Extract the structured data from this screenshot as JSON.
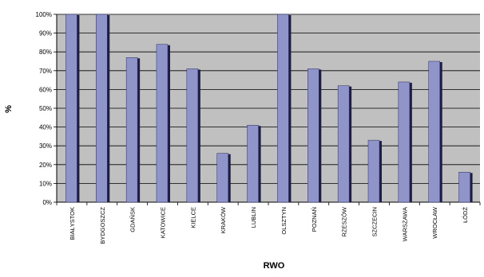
{
  "chart_data": {
    "type": "bar",
    "title": "",
    "xlabel": "RWO",
    "ylabel": "%",
    "categories": [
      "BIAŁYSTOK",
      "BYDGOSZCZ",
      "GDAŃSK",
      "KATOWICE",
      "KIELCE",
      "KRAKÓW",
      "LUBLIN",
      "OLSZTYN",
      "POZNAŃ",
      "RZESZÓW",
      "SZCZECIN",
      "WARSZAWA",
      "WROCŁAW",
      "ŁÓDŹ"
    ],
    "series": [
      {
        "values": [
          100,
          100,
          77,
          84,
          71,
          26,
          41,
          100,
          71,
          62,
          33,
          64,
          75,
          16
        ]
      }
    ],
    "ylim": [
      0,
      100
    ],
    "yticks": [
      "0%",
      "10%",
      "20%",
      "30%",
      "40%",
      "50%",
      "60%",
      "70%",
      "80%",
      "90%",
      "100%"
    ],
    "grid": true,
    "legend": "none",
    "colors": {
      "plot_background": "#c0c0c0",
      "bar_fill": "#8f95c9",
      "bar_shadow": "#1c1c48",
      "gridline": "#000000"
    }
  }
}
